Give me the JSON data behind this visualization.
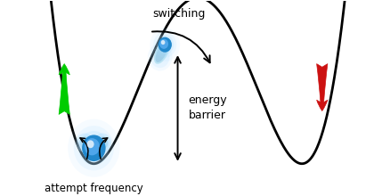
{
  "bg_color": "#ffffff",
  "curve_color": "#000000",
  "curve_lw": 2.0,
  "green_arrow_color": "#00cc00",
  "red_arrow_color": "#cc1111",
  "text_switching": "switching",
  "text_energy_barrier": "energy\nbarrier",
  "text_attempt_frequency": "attempt frequency",
  "label_fontsize": 9.0,
  "fig_width": 4.2,
  "fig_height": 2.2,
  "dpi": 100,
  "xlim": [
    -1.5,
    10.5
  ],
  "ylim": [
    -2.2,
    3.2
  ],
  "well1_x": 1.5,
  "well1_y": -1.5,
  "peak_x": 4.2,
  "peak_y": 1.7,
  "well2_x": 8.2,
  "well2_y": -1.5
}
